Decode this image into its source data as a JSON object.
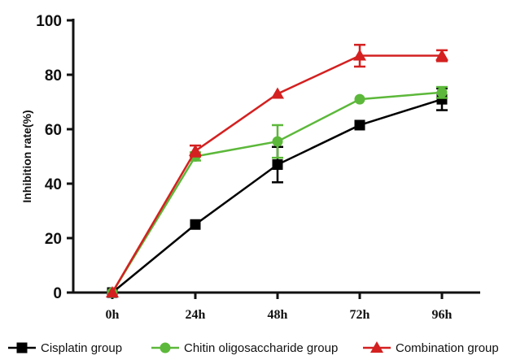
{
  "chart_data": {
    "type": "line",
    "title": "",
    "xlabel": "",
    "ylabel": "Inhibition rate(%)",
    "categories": [
      "0h",
      "24h",
      "48h",
      "72h",
      "96h"
    ],
    "ylim": [
      0,
      100
    ],
    "yticks": [
      "0",
      "20",
      "40",
      "60",
      "80",
      "100"
    ],
    "grid": false,
    "legend_position": "bottom",
    "series": [
      {
        "name": "Cisplatin group",
        "color": "#000000",
        "marker": "square",
        "values": [
          0,
          25,
          47,
          61.5,
          71
        ],
        "err_low": [
          0,
          0,
          6.5,
          0,
          4
        ],
        "err_high": [
          0,
          0,
          6.5,
          0,
          4
        ]
      },
      {
        "name": "Chitin oligosaccharide group",
        "color": "#5cb83a",
        "marker": "circle",
        "values": [
          0,
          50,
          55.5,
          71,
          73.5
        ],
        "err_low": [
          0,
          1.5,
          6,
          0,
          2
        ],
        "err_high": [
          0,
          1.5,
          6,
          0,
          2
        ]
      },
      {
        "name": "Combination group",
        "color": "#d42020",
        "marker": "triangle",
        "values": [
          0,
          52,
          73,
          87,
          87
        ],
        "err_low": [
          0,
          2,
          0,
          4,
          2
        ],
        "err_high": [
          0,
          2,
          0,
          4,
          2
        ]
      }
    ]
  }
}
